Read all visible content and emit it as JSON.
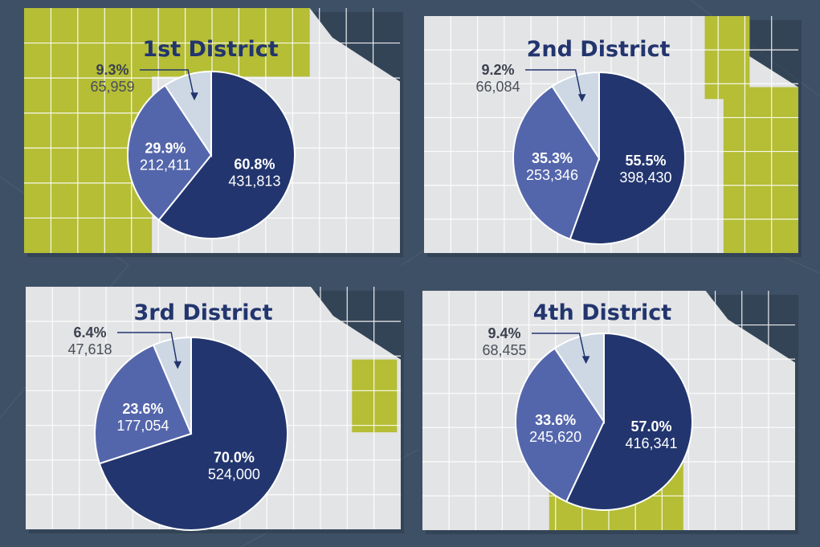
{
  "colors": {
    "background": "#3e5065",
    "map": "#e3e4e6",
    "district": "#b5be35",
    "dark": "#22356e",
    "mid": "#5466ab",
    "light": "#cdd8e4"
  },
  "chart_data": [
    {
      "type": "pie",
      "title": "1st District",
      "slices": [
        {
          "percent": "60.8%",
          "count": "431,813",
          "value": 60.8,
          "color": "#22356e"
        },
        {
          "percent": "29.9%",
          "count": "212,411",
          "value": 29.9,
          "color": "#5466ab"
        },
        {
          "percent": "9.3%",
          "count": "65,959",
          "value": 9.3,
          "color": "#cdd8e4"
        }
      ]
    },
    {
      "type": "pie",
      "title": "2nd District",
      "slices": [
        {
          "percent": "55.5%",
          "count": "398,430",
          "value": 55.5,
          "color": "#22356e"
        },
        {
          "percent": "35.3%",
          "count": "253,346",
          "value": 35.3,
          "color": "#5466ab"
        },
        {
          "percent": "9.2%",
          "count": "66,084",
          "value": 9.2,
          "color": "#cdd8e4"
        }
      ]
    },
    {
      "type": "pie",
      "title": "3rd District",
      "slices": [
        {
          "percent": "70.0%",
          "count": "524,000",
          "value": 70.0,
          "color": "#22356e"
        },
        {
          "percent": "23.6%",
          "count": "177,054",
          "value": 23.6,
          "color": "#5466ab"
        },
        {
          "percent": "6.4%",
          "count": "47,618",
          "value": 6.4,
          "color": "#cdd8e4"
        }
      ]
    },
    {
      "type": "pie",
      "title": "4th District",
      "slices": [
        {
          "percent": "57.0%",
          "count": "416,341",
          "value": 57.0,
          "color": "#22356e"
        },
        {
          "percent": "33.6%",
          "count": "245,620",
          "value": 33.6,
          "color": "#5466ab"
        },
        {
          "percent": "9.4%",
          "count": "68,455",
          "value": 9.4,
          "color": "#cdd8e4"
        }
      ]
    }
  ]
}
